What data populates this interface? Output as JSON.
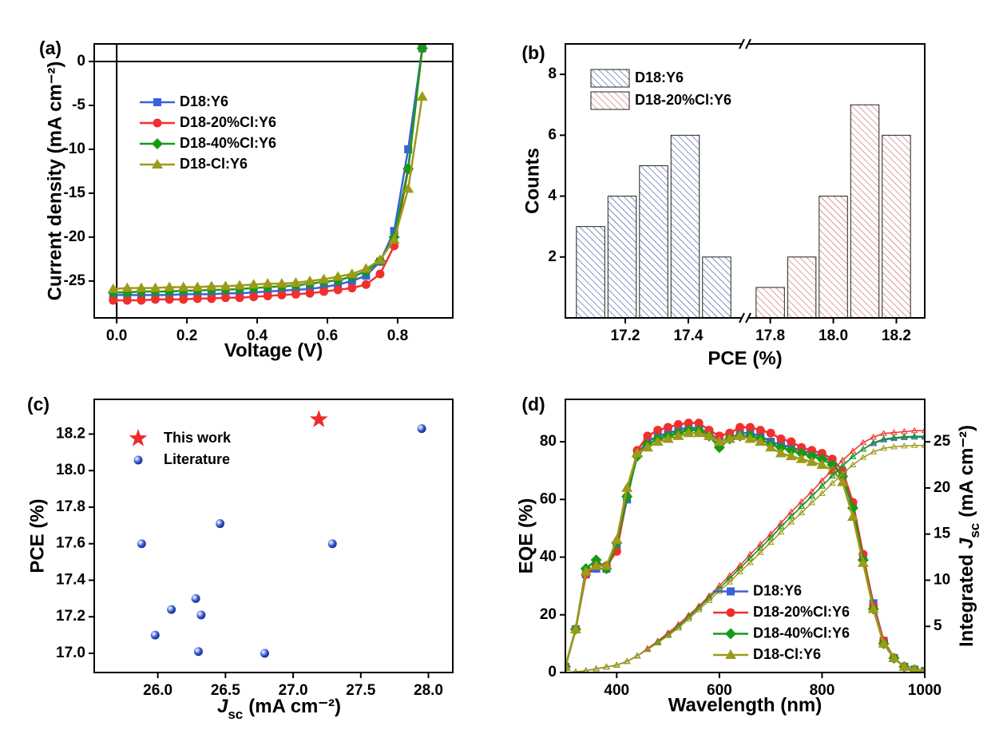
{
  "chart_data": [
    {
      "type": "line",
      "panel_label": "(a)",
      "x_label": "Voltage (V)",
      "y_label": "Current density (mA cm⁻²)",
      "xlim": [
        -0.064,
        0.957
      ],
      "ylim": [
        -29.2,
        2
      ],
      "xticks": [
        {
          "value": 0,
          "label": "0.0"
        },
        0.2,
        0.4,
        0.6,
        0.8
      ],
      "yticks": [
        -25,
        -20,
        -15,
        -10,
        -5,
        0
      ],
      "zero_lines": true,
      "legend": "upper left",
      "x": [
        -0.01,
        0.03,
        0.07,
        0.11,
        0.15,
        0.19,
        0.23,
        0.27,
        0.31,
        0.35,
        0.39,
        0.43,
        0.47,
        0.51,
        0.55,
        0.59,
        0.63,
        0.67,
        0.71,
        0.75,
        0.79,
        0.83,
        0.87
      ],
      "series": [
        {
          "name": "D18:Y6",
          "color": "#3a62d8",
          "marker": "square",
          "values": [
            -26.6,
            -26.6,
            -26.6,
            -26.6,
            -26.6,
            -26.5,
            -26.5,
            -26.5,
            -26.4,
            -26.4,
            -26.3,
            -26.2,
            -26.1,
            -26.0,
            -25.9,
            -25.7,
            -25.4,
            -25.0,
            -24.4,
            -22.8,
            -19.3,
            -10.0,
            1.5
          ]
        },
        {
          "name": "D18-20%Cl:Y6",
          "color": "#f0302e",
          "marker": "circle",
          "values": [
            -27.2,
            -27.2,
            -27.2,
            -27.1,
            -27.1,
            -27.1,
            -27.0,
            -27.0,
            -26.9,
            -26.9,
            -26.8,
            -26.7,
            -26.6,
            -26.5,
            -26.4,
            -26.2,
            -26.0,
            -25.8,
            -25.4,
            -24.2,
            -21.0,
            -12.3,
            1.5
          ]
        },
        {
          "name": "D18-40%Cl:Y6",
          "color": "#169a16",
          "marker": "diamond",
          "values": [
            -26.3,
            -26.3,
            -26.2,
            -26.2,
            -26.2,
            -26.1,
            -26.1,
            -26.0,
            -26.0,
            -25.9,
            -25.8,
            -25.7,
            -25.6,
            -25.5,
            -25.3,
            -25.1,
            -24.9,
            -24.5,
            -23.9,
            -22.7,
            -20.0,
            -12.2,
            1.5
          ]
        },
        {
          "name": "D18-Cl:Y6",
          "color": "#9c9a18",
          "marker": "triangle",
          "values": [
            -25.9,
            -25.8,
            -25.8,
            -25.8,
            -25.7,
            -25.7,
            -25.7,
            -25.6,
            -25.6,
            -25.5,
            -25.4,
            -25.3,
            -25.3,
            -25.2,
            -25.0,
            -24.8,
            -24.5,
            -24.2,
            -23.6,
            -22.6,
            -20.3,
            -14.5,
            -4.0
          ]
        }
      ]
    },
    {
      "type": "histogram",
      "panel_label": "(b)",
      "x_label": "PCE (%)",
      "y_label": "Counts",
      "xlim": [
        17.01,
        18.29
      ],
      "xbreak": [
        17.58,
        17.72
      ],
      "ylim": [
        0,
        9
      ],
      "xticks": [
        17.2,
        17.4,
        17.8,
        {
          "value": 18,
          "label": "18.0"
        },
        18.2
      ],
      "yticks": [
        2,
        4,
        6,
        8
      ],
      "legend": "upper left",
      "series": [
        {
          "name": "D18:Y6",
          "color": "#2f4f9f",
          "bins": [
            17.04,
            17.14,
            17.24,
            17.34,
            17.44,
            17.54
          ],
          "values": [
            3,
            4,
            5,
            6,
            2
          ]
        },
        {
          "name": "D18-20%Cl:Y6",
          "color": "#c85a5a",
          "bins": [
            17.75,
            17.85,
            17.95,
            18.05,
            18.15,
            18.25
          ],
          "values": [
            1,
            2,
            4,
            7,
            6
          ]
        }
      ]
    },
    {
      "type": "scatter",
      "panel_label": "(c)",
      "x_label": {
        "symbol": "J",
        "subscript": "sc",
        "unit": "(mA cm⁻²)"
      },
      "y_label": "PCE (%)",
      "xlim": [
        25.53,
        28.18
      ],
      "ylim": [
        16.895,
        18.39
      ],
      "xticks": [
        {
          "value": 26,
          "label": "26.0"
        },
        26.5,
        {
          "value": 27,
          "label": "27.0"
        },
        27.5,
        {
          "value": 28,
          "label": "28.0"
        }
      ],
      "yticks": [
        {
          "value": 17,
          "label": "17.0"
        },
        17.2,
        17.4,
        17.6,
        17.8,
        {
          "value": 18,
          "label": "18.0"
        },
        18.2
      ],
      "legend": "upper left",
      "series": [
        {
          "name": "This work",
          "color": "#ee2a2a",
          "marker": "star",
          "x": [
            27.19
          ],
          "values": [
            18.28
          ]
        },
        {
          "name": "Literature",
          "color": "#2f55d0",
          "marker": "sphere",
          "x": [
            25.88,
            25.98,
            26.1,
            26.28,
            26.32,
            26.3,
            26.46,
            26.79,
            27.29,
            27.95
          ],
          "values": [
            17.6,
            17.1,
            17.24,
            17.3,
            17.21,
            17.01,
            17.71,
            17.0,
            17.6,
            18.23
          ]
        }
      ]
    },
    {
      "type": "line",
      "panel_label": "(d)",
      "x_label": "Wavelength (nm)",
      "y_label": "EQE (%)",
      "y2_label": {
        "prefix": "Integrated",
        "symbol": "J",
        "subscript": "sc",
        "unit": "(mA cm⁻²)"
      },
      "xlim": [
        300,
        1000
      ],
      "ylim": [
        0,
        94.7
      ],
      "y2lim": [
        0,
        29.6
      ],
      "xticks": [
        400,
        600,
        800,
        1000
      ],
      "yticks": [
        0,
        20,
        40,
        60,
        80
      ],
      "y2ticks": [
        5,
        10,
        15,
        20,
        25
      ],
      "legend": "lower right",
      "x": [
        300,
        320,
        340,
        360,
        380,
        400,
        420,
        440,
        460,
        480,
        500,
        520,
        540,
        560,
        580,
        600,
        620,
        640,
        660,
        680,
        700,
        720,
        740,
        760,
        780,
        800,
        820,
        840,
        860,
        880,
        900,
        920,
        940,
        960,
        980,
        1000
      ],
      "series": [
        {
          "name": "D18:Y6",
          "color": "#3a62d8",
          "marker": "square",
          "values": [
            2,
            15,
            34,
            36,
            36,
            43,
            60,
            76,
            80,
            82,
            83,
            84,
            85,
            84.5,
            83,
            80,
            81,
            83,
            83,
            82,
            80,
            79,
            78,
            77,
            76,
            75,
            73,
            68,
            58,
            40,
            24,
            11,
            5,
            2,
            1,
            0.5
          ]
        },
        {
          "name": "D18-20%Cl:Y6",
          "color": "#f0302e",
          "marker": "circle",
          "values": [
            2,
            15,
            34,
            37,
            37,
            42,
            61,
            77,
            82,
            84,
            85,
            86,
            86.5,
            86.5,
            84,
            82,
            83,
            85,
            85,
            84,
            83,
            81,
            80,
            78,
            77,
            76,
            74,
            70,
            59,
            41,
            23,
            11,
            5,
            2,
            1,
            0.5
          ]
        },
        {
          "name": "D18-40%Cl:Y6",
          "color": "#169a16",
          "marker": "diamond",
          "values": [
            2,
            15,
            36,
            39,
            36,
            45,
            61,
            75,
            79,
            81,
            82,
            83,
            84,
            84,
            82,
            78,
            81,
            82,
            82,
            81,
            79,
            78,
            77,
            76,
            75,
            74,
            72,
            68,
            57,
            39,
            22,
            10,
            5,
            2,
            1,
            0.5
          ]
        },
        {
          "name": "D18-Cl:Y6",
          "color": "#9c9a18",
          "marker": "triangle",
          "values": [
            2,
            15,
            35,
            37,
            37,
            46,
            64,
            76,
            78,
            80,
            81,
            82,
            83,
            83,
            82,
            80,
            81,
            82,
            81,
            80,
            78,
            76,
            75,
            74,
            73,
            72,
            70,
            66,
            54,
            38,
            22,
            10,
            5,
            2,
            1,
            0.5
          ]
        },
        {
          "axis": "y2",
          "color": "#3a62d8",
          "marker": "hollow",
          "values": [
            0,
            0.05,
            0.2,
            0.4,
            0.6,
            0.8,
            1.2,
            1.8,
            2.5,
            3.3,
            4.1,
            5.0,
            6.0,
            7.0,
            8.1,
            9.1,
            10.2,
            11.3,
            12.4,
            13.5,
            14.6,
            15.8,
            16.9,
            18.0,
            19.1,
            20.2,
            21.3,
            22.4,
            23.4,
            24.2,
            24.8,
            25.2,
            25.35,
            25.45,
            25.5,
            25.5
          ]
        },
        {
          "axis": "y2",
          "color": "#f0302e",
          "marker": "hollow",
          "values": [
            0,
            0.05,
            0.2,
            0.4,
            0.6,
            0.8,
            1.2,
            1.8,
            2.6,
            3.4,
            4.3,
            5.2,
            6.2,
            7.2,
            8.3,
            9.4,
            10.5,
            11.6,
            12.8,
            13.9,
            15.0,
            16.2,
            17.4,
            18.5,
            19.6,
            20.8,
            21.9,
            23.0,
            24.0,
            24.9,
            25.5,
            25.9,
            26.0,
            26.1,
            26.2,
            26.2
          ]
        },
        {
          "axis": "y2",
          "color": "#169a16",
          "marker": "hollow",
          "values": [
            0,
            0.05,
            0.2,
            0.4,
            0.6,
            0.8,
            1.2,
            1.8,
            2.5,
            3.3,
            4.1,
            5.0,
            6.0,
            7.0,
            8.1,
            9.1,
            10.2,
            11.3,
            12.4,
            13.5,
            14.6,
            15.8,
            16.9,
            18.0,
            19.1,
            20.2,
            21.3,
            22.4,
            23.4,
            24.2,
            24.9,
            25.3,
            25.45,
            25.55,
            25.6,
            25.6
          ]
        },
        {
          "axis": "y2",
          "color": "#9c9a18",
          "marker": "hollow",
          "values": [
            0,
            0.05,
            0.2,
            0.4,
            0.6,
            0.8,
            1.2,
            1.8,
            2.5,
            3.2,
            4.0,
            4.8,
            5.8,
            6.8,
            7.8,
            8.8,
            9.8,
            10.9,
            11.9,
            13.0,
            14.1,
            15.2,
            16.3,
            17.3,
            18.4,
            19.4,
            20.5,
            21.5,
            22.5,
            23.3,
            23.9,
            24.3,
            24.45,
            24.55,
            24.6,
            24.6
          ]
        }
      ]
    }
  ]
}
